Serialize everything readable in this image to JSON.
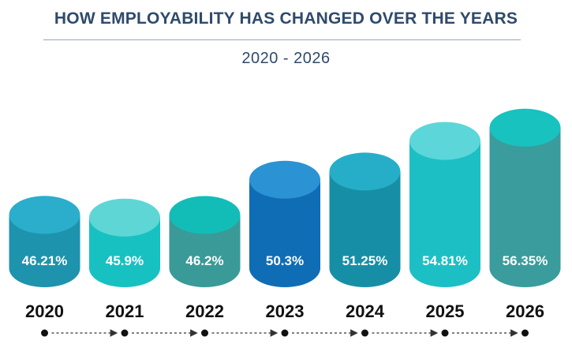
{
  "chart_data": {
    "type": "bar",
    "title": "HOW EMPLOYABILITY HAS CHANGED OVER THE YEARS",
    "subtitle": "2020 - 2026",
    "categories": [
      "2020",
      "2021",
      "2022",
      "2023",
      "2024",
      "2025",
      "2026"
    ],
    "values": [
      46.21,
      45.9,
      46.2,
      50.3,
      51.25,
      54.81,
      56.35
    ],
    "value_labels": [
      "46.21%",
      "45.9%",
      "46.2%",
      "50.3%",
      "51.25%",
      "54.81%",
      "56.35%"
    ],
    "unit": "%",
    "xlabel": "",
    "ylabel": "",
    "colors": [
      {
        "body": "#1e93ad",
        "top": "#2aaecb"
      },
      {
        "body": "#18c1c1",
        "top": "#5ed6d6"
      },
      {
        "body": "#3a9a97",
        "top": "#12bdb8"
      },
      {
        "body": "#0f6db5",
        "top": "#2b92d4"
      },
      {
        "body": "#168fa6",
        "top": "#26aec8"
      },
      {
        "body": "#1cc0c4",
        "top": "#5cd6d8"
      },
      {
        "body": "#3a9c9c",
        "top": "#17c2bf"
      }
    ],
    "label_color": "#ffffff",
    "year_color": "#111111"
  }
}
